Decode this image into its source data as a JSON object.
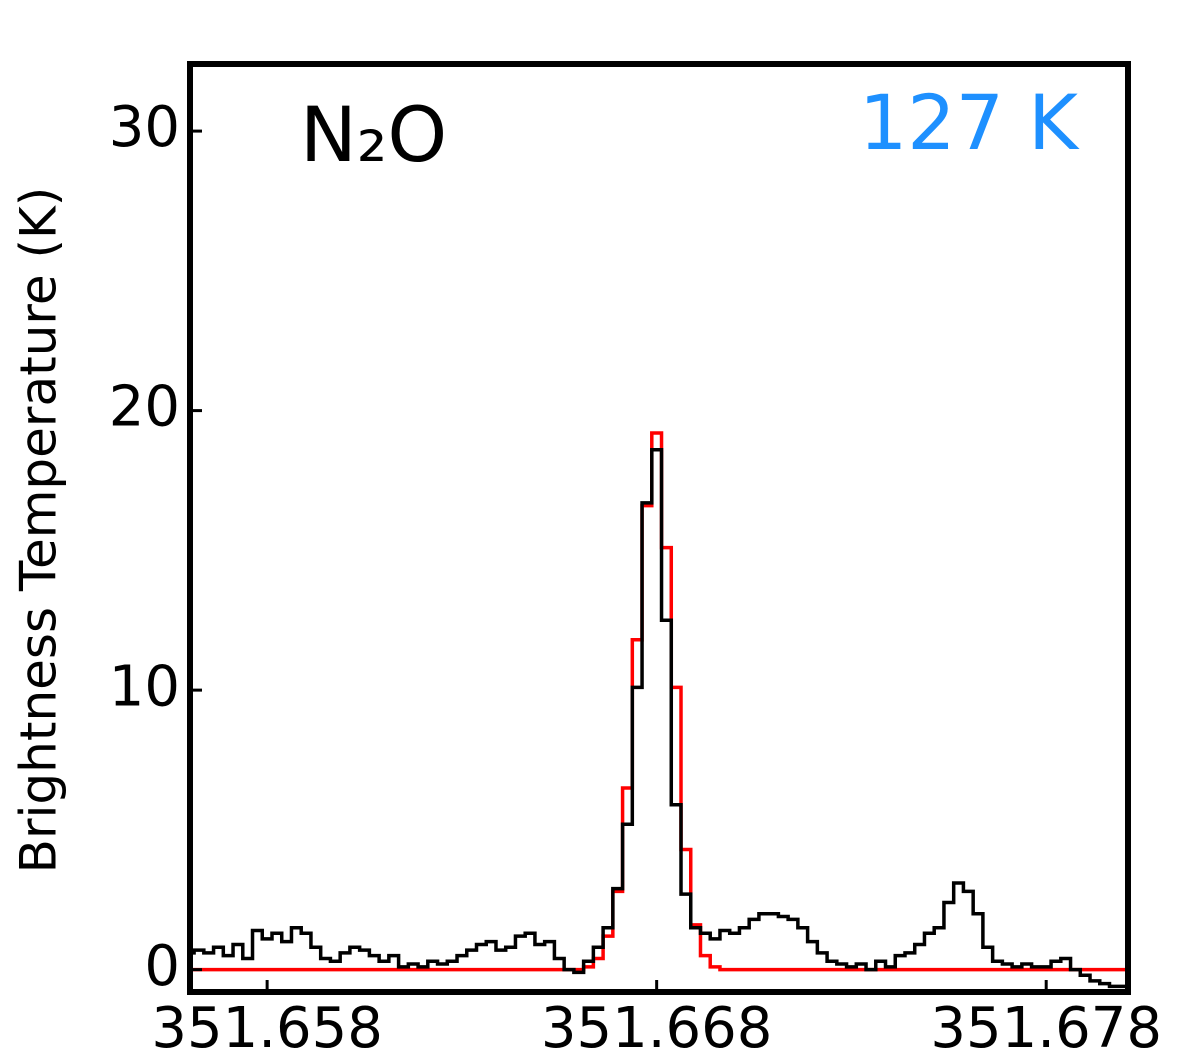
{
  "chart_data": {
    "type": "step",
    "ylabel": "Brightness Temperature (K)",
    "annotations": [
      {
        "text": "N₂O",
        "color": "#000000"
      },
      {
        "text": "127 K",
        "color": "#1e90ff"
      }
    ],
    "xlim": [
      351.65602,
      351.6801
    ],
    "ylim": [
      -0.8,
      32.4
    ],
    "xticks": [
      351.658,
      351.668,
      351.678
    ],
    "yticks": [
      0,
      10,
      20,
      30
    ],
    "x": [
      351.656,
      351.65625,
      351.6565,
      351.65675,
      351.657,
      351.65725,
      351.6575,
      351.65775,
      351.658,
      351.65825,
      351.6585,
      351.65875,
      351.659,
      351.65925,
      351.6595,
      351.65975,
      351.66,
      351.66025,
      351.6605,
      351.66075,
      351.661,
      351.66125,
      351.6615,
      351.66175,
      351.662,
      351.66225,
      351.6625,
      351.66275,
      351.663,
      351.66325,
      351.6635,
      351.66375,
      351.664,
      351.66425,
      351.6645,
      351.66475,
      351.665,
      351.66525,
      351.6655,
      351.66575,
      351.666,
      351.66625,
      351.6665,
      351.66675,
      351.667,
      351.66725,
      351.6675,
      351.66775,
      351.668,
      351.66825,
      351.6685,
      351.66875,
      351.669,
      351.66925,
      351.6695,
      351.66975,
      351.67,
      351.67025,
      351.6705,
      351.67075,
      351.671,
      351.67125,
      351.6715,
      351.67175,
      351.672,
      351.67225,
      351.6725,
      351.67275,
      351.673,
      351.67325,
      351.6735,
      351.67375,
      351.674,
      351.67425,
      351.6745,
      351.67475,
      351.675,
      351.67525,
      351.6755,
      351.67575,
      351.676,
      351.67625,
      351.6765,
      351.67675,
      351.677,
      351.67725,
      351.6775,
      351.67775,
      351.678,
      351.67825,
      351.6785,
      351.67875,
      351.679,
      351.67925,
      351.6795,
      351.67975,
      351.68
    ],
    "series": [
      {
        "color": "#ff0000",
        "values": [
          0,
          0,
          0,
          0,
          0,
          0,
          0,
          0,
          0,
          0,
          0,
          0,
          0,
          0,
          0,
          0,
          0,
          0,
          0,
          0,
          0,
          0,
          0,
          0,
          0,
          0,
          0,
          0,
          0,
          0,
          0,
          0,
          0,
          0,
          0,
          0,
          0,
          0,
          0,
          0,
          0,
          0.1,
          0.4,
          1.2,
          2.8,
          6.5,
          11.8,
          16.6,
          19.2,
          15.1,
          10.1,
          4.3,
          1.6,
          0.5,
          0.1,
          0,
          0,
          0,
          0,
          0,
          0,
          0,
          0,
          0,
          0,
          0,
          0,
          0,
          0,
          0,
          0,
          0,
          0,
          0,
          0,
          0,
          0,
          0,
          0,
          0,
          0,
          0,
          0,
          0,
          0,
          0,
          0,
          0,
          0,
          0,
          0,
          0,
          0,
          0,
          0,
          0,
          0
        ]
      },
      {
        "color": "#000000",
        "values": [
          0.6,
          0.7,
          0.6,
          0.8,
          0.5,
          0.9,
          0.4,
          1.4,
          1.1,
          1.3,
          1.0,
          1.5,
          1.3,
          0.8,
          0.4,
          0.3,
          0.6,
          0.8,
          0.7,
          0.5,
          0.3,
          0.5,
          0.1,
          0.2,
          0.1,
          0.3,
          0.2,
          0.3,
          0.5,
          0.7,
          0.9,
          1.0,
          0.7,
          0.8,
          1.2,
          1.3,
          0.9,
          1.0,
          0.4,
          0.0,
          -0.1,
          0.3,
          0.8,
          1.5,
          2.9,
          5.2,
          10.1,
          16.7,
          18.6,
          12.5,
          5.9,
          2.7,
          1.5,
          1.3,
          1.1,
          1.4,
          1.3,
          1.5,
          1.8,
          2.0,
          2.0,
          1.9,
          1.8,
          1.5,
          1.0,
          0.6,
          0.3,
          0.2,
          0.1,
          0.2,
          0.0,
          0.3,
          0.1,
          0.5,
          0.6,
          0.9,
          1.3,
          1.5,
          2.4,
          3.1,
          2.8,
          2.0,
          0.8,
          0.3,
          0.2,
          0.1,
          0.2,
          0.1,
          0.1,
          0.3,
          0.4,
          0.0,
          -0.2,
          -0.4,
          -0.5,
          -0.6,
          -0.6
        ]
      }
    ]
  }
}
